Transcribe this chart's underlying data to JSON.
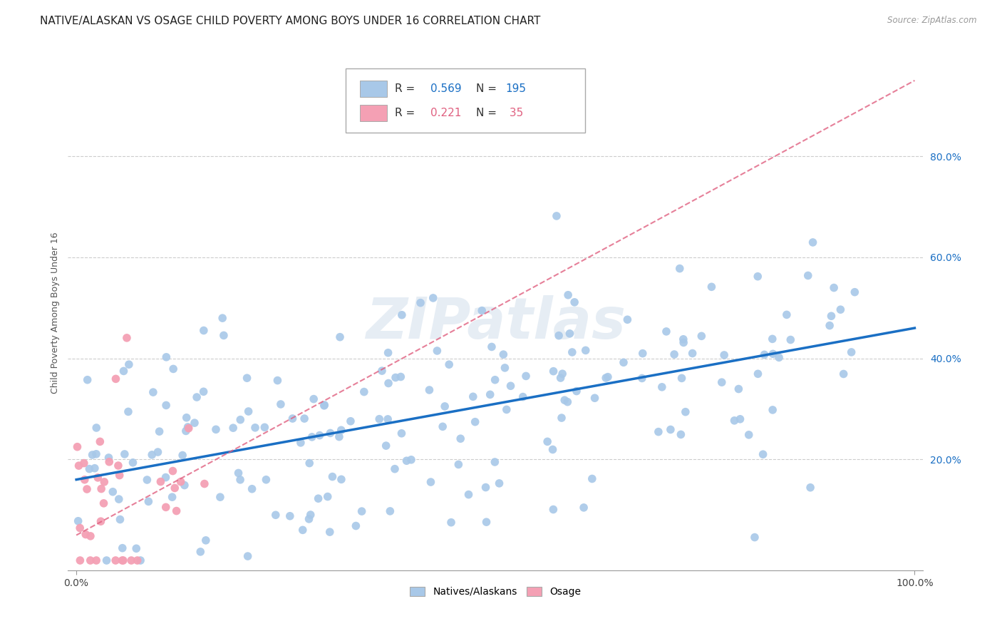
{
  "title": "NATIVE/ALASKAN VS OSAGE CHILD POVERTY AMONG BOYS UNDER 16 CORRELATION CHART",
  "source": "Source: ZipAtlas.com",
  "ylabel": "Child Poverty Among Boys Under 16",
  "ytick_vals": [
    0.2,
    0.4,
    0.6,
    0.8
  ],
  "ytick_labels": [
    "20.0%",
    "40.0%",
    "60.0%",
    "80.0%"
  ],
  "xtick_vals": [
    0.0,
    1.0
  ],
  "xtick_labels": [
    "0.0%",
    "100.0%"
  ],
  "legend_label1": "Natives/Alaskans",
  "legend_label2": "Osage",
  "r1": 0.569,
  "n1": 195,
  "r2": 0.221,
  "n2": 35,
  "blue_color": "#a8c8e8",
  "pink_color": "#f4a0b4",
  "blue_line_color": "#1a6fc4",
  "pink_line_color": "#e06080",
  "watermark": "ZIPatlas",
  "blue_line_intercept": 0.16,
  "blue_line_slope": 0.3,
  "pink_line_intercept": 0.05,
  "pink_line_slope": 0.9,
  "seed": 12345
}
